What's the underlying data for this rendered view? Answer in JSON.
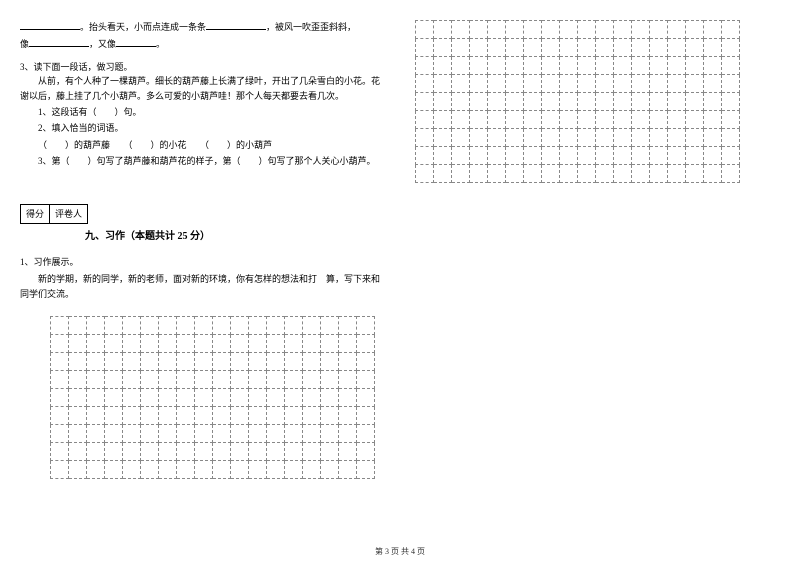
{
  "line1_part1": "。抬头看天，小而点连成一条条",
  "line1_part2": "，被风一吹歪歪斜斜，",
  "line2_part1": "像",
  "line2_part2": "，又像",
  "line2_part3": "。",
  "q3_title": "3、读下面一段话，做习题。",
  "q3_text1": "从前，有个人种了一棵葫芦。细长的葫芦藤上长满了绿叶，开出了几朵雪白的小花。花谢以后，藤上挂了几个小葫芦。多么可爱的小葫芦哇！那个人每天都要去看几次。",
  "q3_sub1": "1、这段话有（　　）句。",
  "q3_sub2": "2、填入恰当的词语。",
  "q3_sub2_line": "（　　）的葫芦藤　　（　　）的小花　　（　　）的小葫芦",
  "q3_sub3": "3、第（　　）句写了葫芦藤和葫芦花的样子，第（　　）句写了那个人关心小葫芦。",
  "score_label1": "得分",
  "score_label2": "评卷人",
  "section9": "九、习作（本题共计 25 分）",
  "writing_q1": "1、习作展示。",
  "writing_desc": "新的学期，新的同学，新的老师，面对新的环境，你有怎样的想法和打　算，写下来和同学们交流。",
  "footer": "第 3 页 共 4 页",
  "grid_left": {
    "rows": 9,
    "cols": 18
  },
  "grid_right": {
    "rows": 9,
    "cols": 18
  }
}
